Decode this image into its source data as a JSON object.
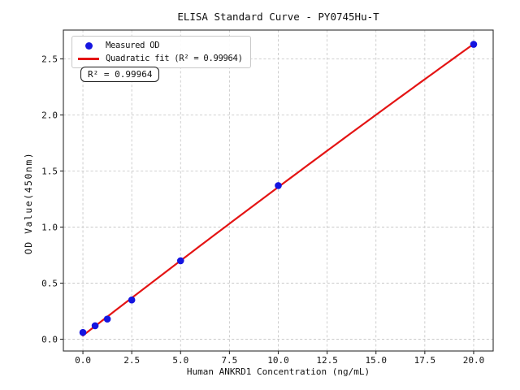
{
  "chart_data": {
    "type": "scatter",
    "title": "ELISA Standard Curve - PY0745Hu-T",
    "xlabel": "Human ANKRD1 Concentration (ng/mL)",
    "ylabel": "OD Value(450nm)",
    "xlim": [
      -1.0,
      21.0
    ],
    "ylim": [
      -0.105,
      2.757
    ],
    "x_ticks": [
      0.0,
      2.5,
      5.0,
      7.5,
      10.0,
      12.5,
      15.0,
      17.5,
      20.0
    ],
    "y_ticks": [
      0.0,
      0.5,
      1.0,
      1.5,
      2.0,
      2.5
    ],
    "grid": true,
    "legend_position": "upper left",
    "series": [
      {
        "name": "Measured OD",
        "type": "scatter",
        "marker": "circle",
        "color": "#1515e0",
        "x": [
          0,
          0.625,
          1.25,
          2.5,
          5,
          10,
          20
        ],
        "y": [
          0.06,
          0.12,
          0.18,
          0.35,
          0.7,
          1.37,
          2.63
        ]
      },
      {
        "name": "Quadratic fit (R² = 0.99964)",
        "type": "quadratic-fit",
        "color": "#e41414",
        "r_squared": 0.99964,
        "x_range": [
          0,
          20
        ]
      }
    ],
    "annotation": "R² = 0.99964"
  }
}
